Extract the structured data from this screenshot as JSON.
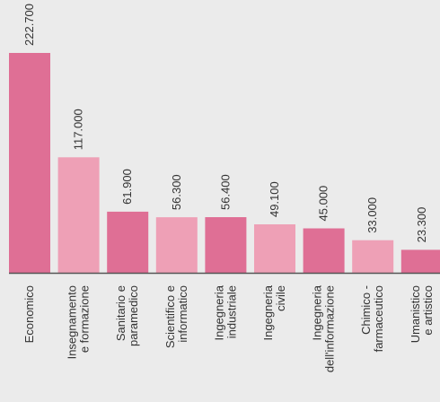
{
  "chart_data": {
    "type": "bar",
    "title": "",
    "xlabel": "",
    "ylabel": "",
    "ylim": [
      0,
      240000
    ],
    "grid": false,
    "legend": "none",
    "categories": [
      [
        "Economico"
      ],
      [
        "Insegnamento",
        "e formazione"
      ],
      [
        "Sanitario e",
        "paramedico"
      ],
      [
        "Scientifico e",
        "informatico"
      ],
      [
        "Ingegneria",
        "industriale"
      ],
      [
        "Ingegneria",
        "civile"
      ],
      [
        "Ingegneria",
        "dell'informazione"
      ],
      [
        "Chimico -",
        "farmaceutico"
      ],
      [
        "Umanistico",
        "e artistico"
      ]
    ],
    "values": [
      222700,
      117000,
      61900,
      56300,
      56400,
      49100,
      45000,
      33000,
      23300
    ],
    "value_labels": [
      "222.700",
      "117.000",
      "61.900",
      "56.300",
      "56.400",
      "49.100",
      "45.000",
      "33.000",
      "23.300"
    ],
    "colors": [
      "#df6f95",
      "#eea0b6",
      "#df6f95",
      "#eea0b6",
      "#df6f95",
      "#eea0b6",
      "#df6f95",
      "#eea0b6",
      "#df6f95"
    ],
    "axis_color": "#555555"
  }
}
